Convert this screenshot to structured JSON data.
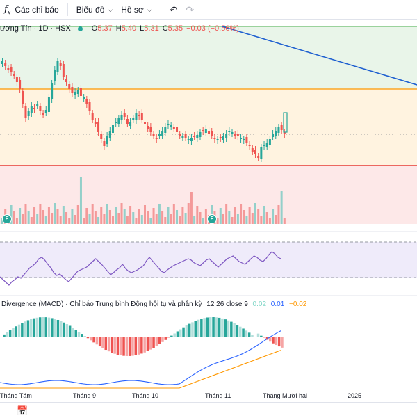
{
  "toolbar": {
    "indicators_label": "Các chỉ báo",
    "chart_type_label": "Biểu đồ",
    "profile_label": "Hồ sơ"
  },
  "legend": {
    "title": "ương Tín · 1D · HSX",
    "open_label": "O",
    "open": "5.37",
    "high_label": "H",
    "high": "5.40",
    "low_label": "L",
    "low": "5.31",
    "close_label": "C",
    "close": "5.35",
    "change": "−0.03 (−0.56%)"
  },
  "macd": {
    "title": "Divergence (MACD) · Chỉ báo Trung bình Động hội tụ và phân kỳ",
    "params": "12 26 close 9",
    "hist": "0.02",
    "macd": "0.01",
    "signal": "−0.02"
  },
  "time_axis": {
    "labels": [
      "Tháng Tám",
      "Tháng 9",
      "Tháng 10",
      "Tháng 11",
      "Tháng Mười hai",
      "2025"
    ]
  },
  "events": {
    "flag_text": "F"
  },
  "colors": {
    "up": "#26a69a",
    "down": "#ef5350",
    "green_zone": "#e9f5e9",
    "orange_zone": "#fff3e0",
    "red_zone": "#fde8e8",
    "rsi_band": "#efebfa",
    "rsi_line": "#7e57c2",
    "macd_line": "#2962ff",
    "signal_line": "#ff9800"
  },
  "icons": {
    "indicators": "fx-icon",
    "undo": "undo-icon",
    "redo": "redo-icon",
    "date_range": "calendar-icon"
  }
}
